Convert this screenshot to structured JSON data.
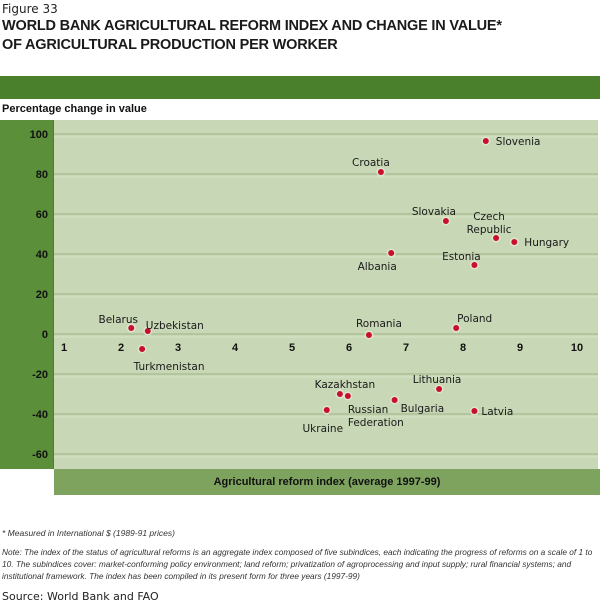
{
  "figure_number": "Figure 33",
  "title_line1": "WORLD BANK AGRICULTURAL REFORM INDEX AND CHANGE IN VALUE*",
  "title_line2": "OF AGRICULTURAL PRODUCTION PER WORKER",
  "footnote": "* Measured in International $ (1989-91 prices)",
  "note": "Note: The index of the status of agricultural reforms is an aggregate index composed of five subindices, each indicating the progress of reforms on a scale of 1 to 10. The subindices cover: market-conforming policy environment; land reform; privatization of agroprocessing and input supply; rural financial systems; and institutional framework. The index has been compiled in its present form for three years (1997-99)",
  "source": "Source: World Bank and FAO",
  "colors": {
    "accent": "#4a7f2b",
    "left_column": "#5b8f3a",
    "plot_bg": "#c8d7b5",
    "xbar": "#7ea35e",
    "point": "#c8102e"
  },
  "chart_data": {
    "type": "scatter",
    "title": "WORLD BANK AGRICULTURAL REFORM INDEX AND CHANGE IN VALUE* OF AGRICULTURAL PRODUCTION PER WORKER",
    "xlabel": "Agricultural reform index (average 1997-99)",
    "ylabel": "Percentage change in value",
    "xlim": [
      1,
      10
    ],
    "ylim": [
      -60,
      100
    ],
    "xticks": [
      "1",
      "2",
      "3",
      "4",
      "5",
      "6",
      "7",
      "8",
      "9",
      "10"
    ],
    "yticks": [
      "100",
      "80",
      "60",
      "40",
      "20",
      "0",
      "-20",
      "-40",
      "-60"
    ],
    "grid": true,
    "points": [
      {
        "label": "Slovenia",
        "x": 8.4,
        "y": 96.5
      },
      {
        "label": "Croatia",
        "x": 6.56,
        "y": 81
      },
      {
        "label": "Slovakia",
        "x": 7.7,
        "y": 56.5
      },
      {
        "label": "Czech Republic",
        "label_lines": [
          "Czech",
          "Republic"
        ],
        "x": 8.58,
        "y": 48
      },
      {
        "label": "Hungary",
        "x": 8.9,
        "y": 46
      },
      {
        "label": "Albania",
        "x": 6.74,
        "y": 40.5
      },
      {
        "label": "Estonia",
        "x": 8.2,
        "y": 34.5
      },
      {
        "label": "Belarus",
        "x": 2.18,
        "y": 3
      },
      {
        "label": "Uzbekistan",
        "x": 2.47,
        "y": 1.5
      },
      {
        "label": "Turkmenistan",
        "x": 2.37,
        "y": -7.5
      },
      {
        "label": "Romania",
        "x": 6.35,
        "y": -0.5
      },
      {
        "label": "Poland",
        "x": 7.88,
        "y": 3
      },
      {
        "label": "Kazakhstan",
        "x": 5.84,
        "y": -30
      },
      {
        "label": "Russian Federation",
        "label_lines": [
          "Russian",
          "Federation"
        ],
        "x": 5.98,
        "y": -31
      },
      {
        "label": "Ukraine",
        "x": 5.61,
        "y": -38
      },
      {
        "label": "Bulgaria",
        "x": 6.8,
        "y": -33
      },
      {
        "label": "Lithuania",
        "x": 7.58,
        "y": -27.5
      },
      {
        "label": "Latvia",
        "x": 8.2,
        "y": -38.5
      }
    ]
  }
}
